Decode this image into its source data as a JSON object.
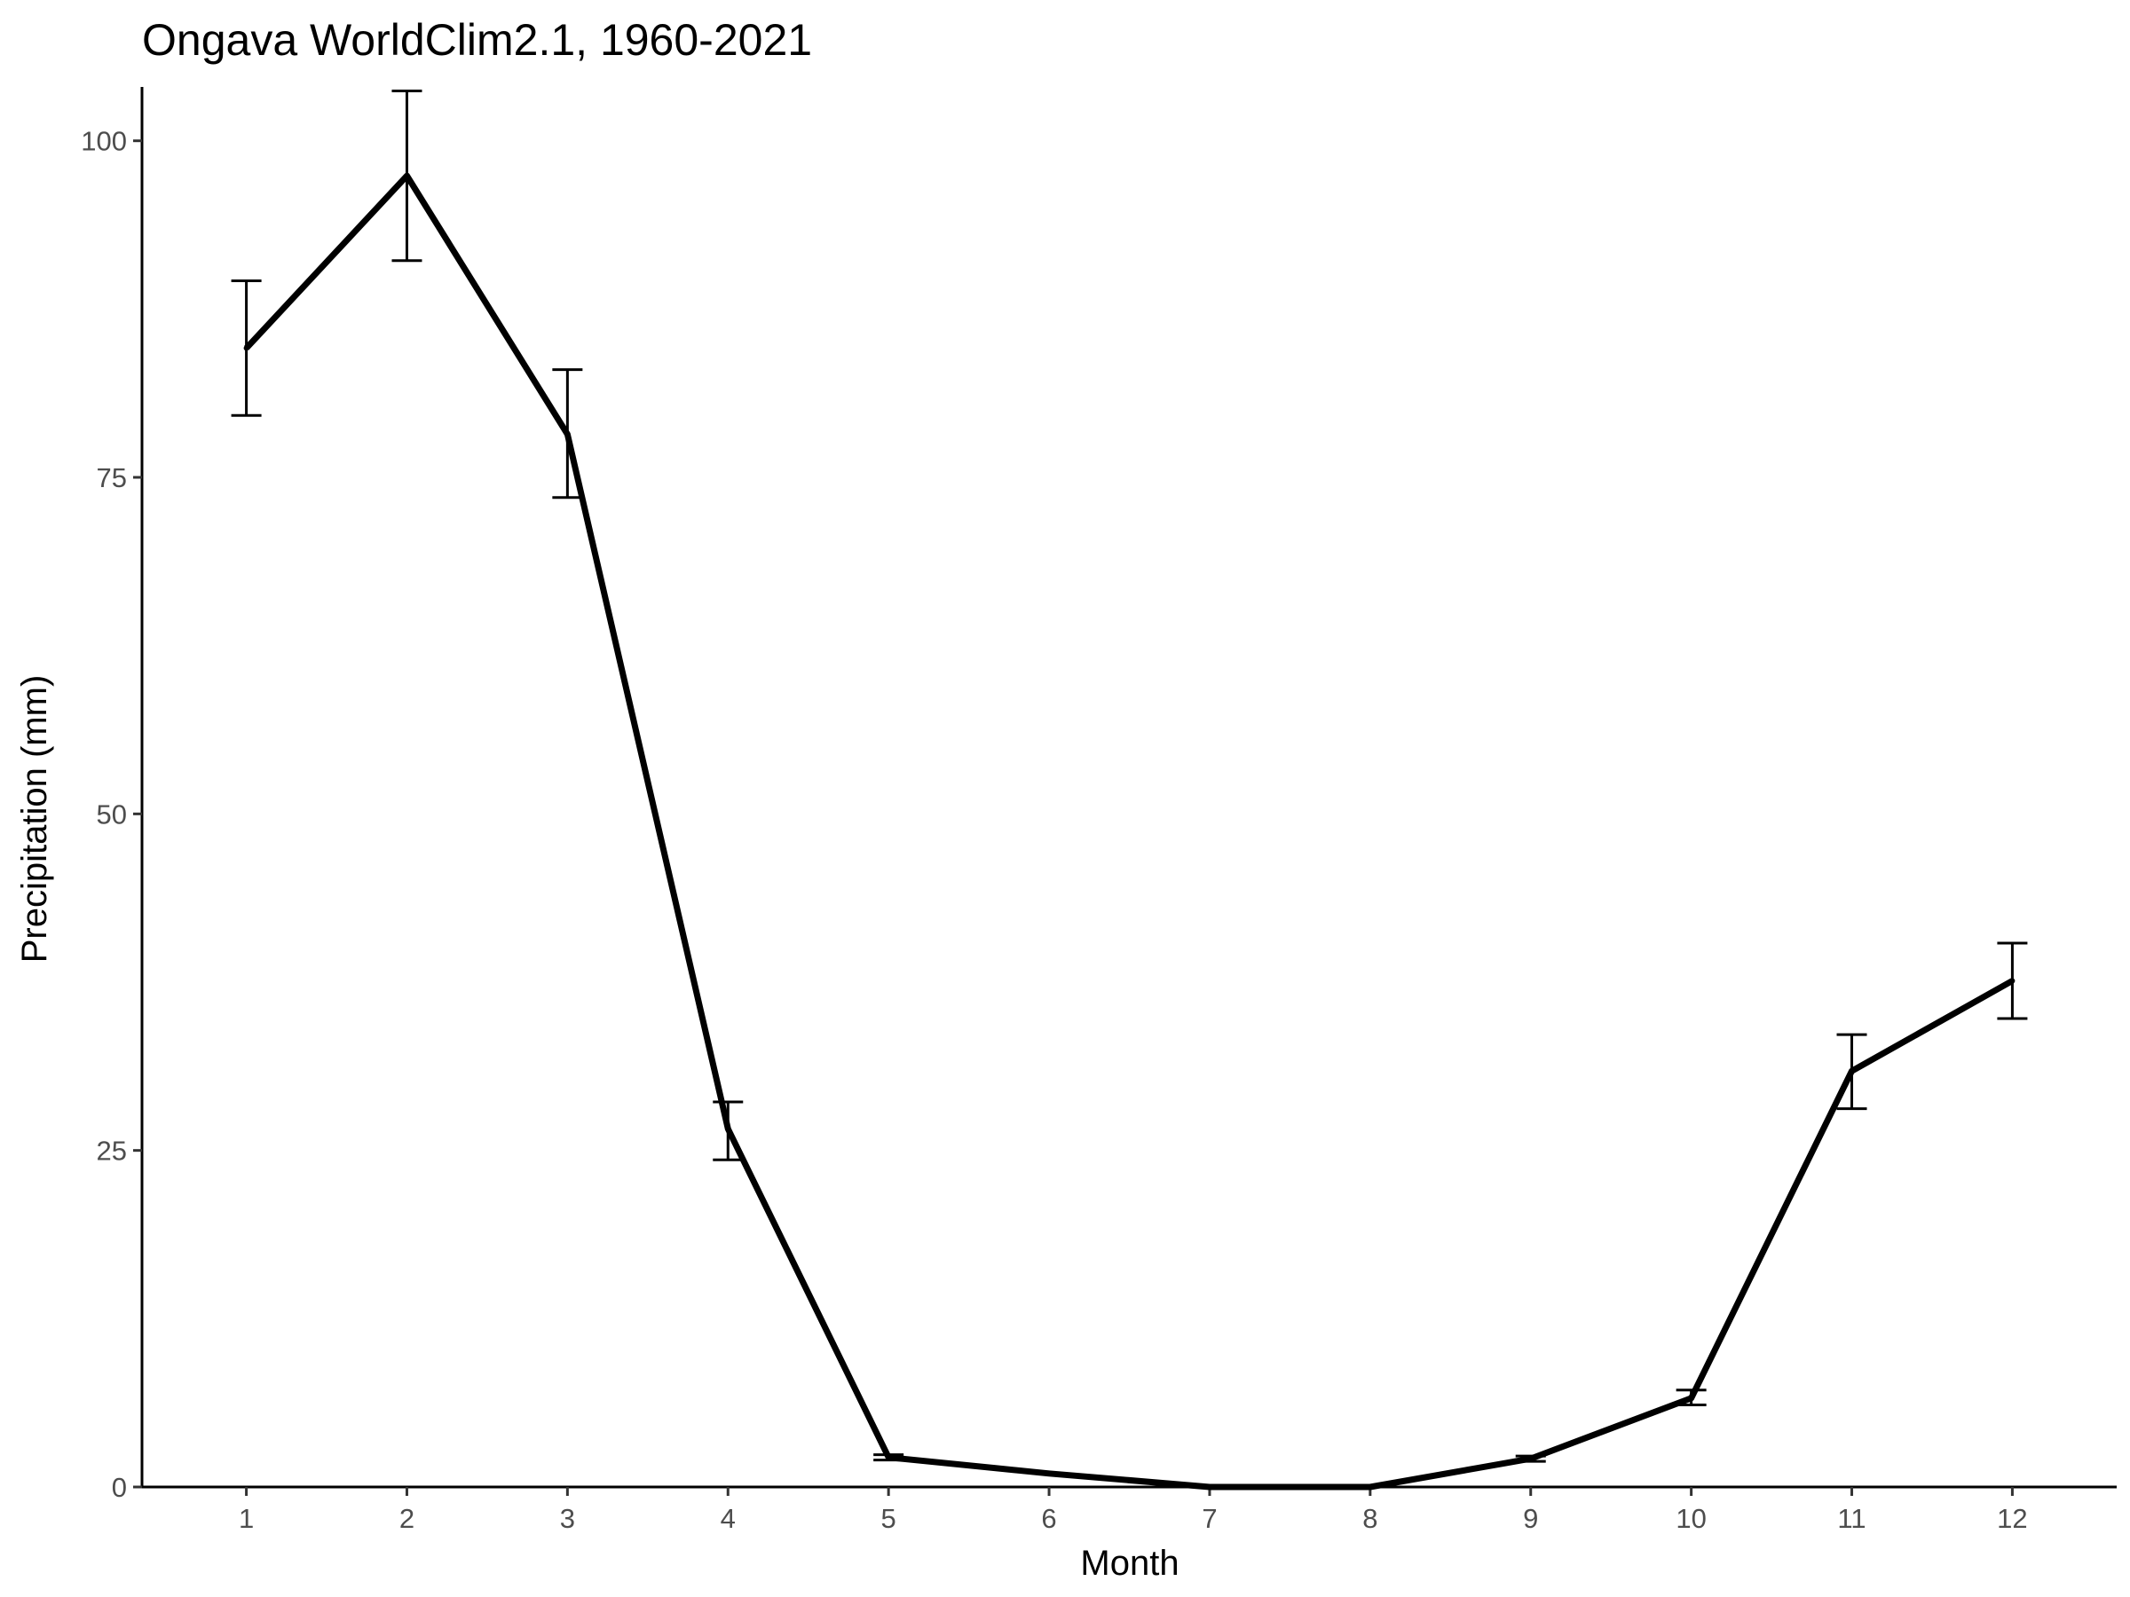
{
  "chart_data": {
    "type": "line",
    "title": "Ongava WorldClim2.1, 1960-2021",
    "xlabel": "Month",
    "ylabel": "Precipitation (mm)",
    "x": [
      1,
      2,
      3,
      4,
      5,
      6,
      7,
      8,
      9,
      10,
      11,
      12
    ],
    "x_tick_labels": [
      "1",
      "2",
      "3",
      "4",
      "5",
      "6",
      "7",
      "8",
      "9",
      "10",
      "11",
      "12"
    ],
    "xlim": [
      0.35,
      12.65
    ],
    "y_ticks": [
      0,
      25,
      50,
      75,
      100
    ],
    "y_tick_labels": [
      "0",
      "25",
      "50",
      "75",
      "100"
    ],
    "ylim": [
      0,
      104
    ],
    "series": [
      {
        "values": [
          84.6,
          97.4,
          78.2,
          26.6,
          2.2,
          1.0,
          0.0,
          0.0,
          2.1,
          6.6,
          30.9,
          37.6
        ],
        "error_lower": [
          79.6,
          91.1,
          73.5,
          24.3,
          2.0,
          null,
          null,
          null,
          1.9,
          6.1,
          28.1,
          34.8
        ],
        "error_upper": [
          89.6,
          103.7,
          83.0,
          28.6,
          2.4,
          null,
          null,
          null,
          2.3,
          7.2,
          33.6,
          40.4
        ]
      }
    ],
    "colors": {
      "line": "#000000",
      "axis": "#000000",
      "tick_label": "#4d4d4d"
    },
    "grid": false,
    "legend": "none"
  }
}
